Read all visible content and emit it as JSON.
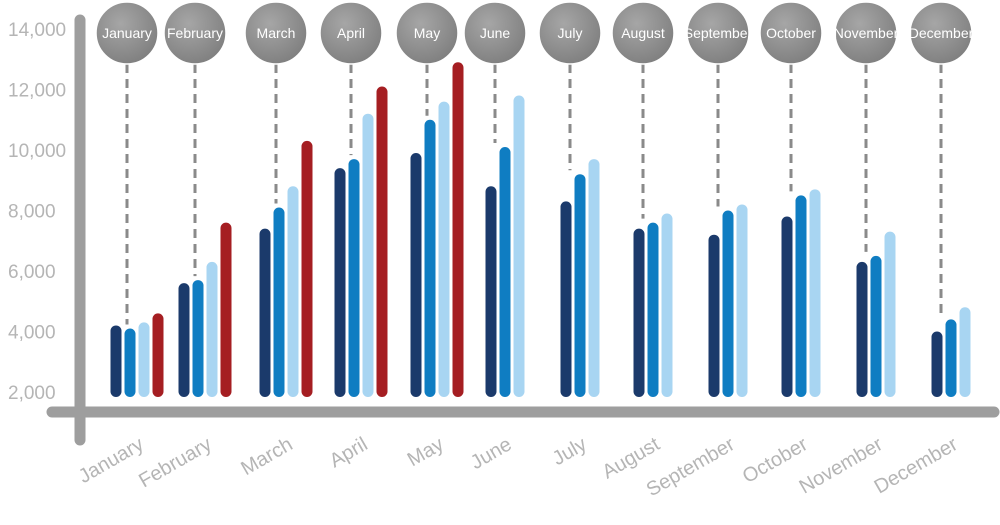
{
  "chart_data": {
    "type": "bar",
    "title": "",
    "xlabel": "",
    "ylabel": "",
    "categories": [
      "January",
      "February",
      "March",
      "April",
      "May",
      "June",
      "July",
      "August",
      "September",
      "October",
      "November",
      "December"
    ],
    "bubble_labels": [
      "January",
      "February",
      "March",
      "April",
      "May",
      "June",
      "July",
      "August",
      "September",
      "October",
      "November",
      "December"
    ],
    "yticks": [
      "2,000",
      "4,000",
      "6,000",
      "8,000",
      "10,000",
      "12,000",
      "14,000"
    ],
    "ytick_values": [
      2000,
      4000,
      6000,
      8000,
      10000,
      12000,
      14000
    ],
    "ylim": [
      0,
      14000
    ],
    "grid": false,
    "series": [
      {
        "color": "#1b3a6b",
        "values": [
          4200,
          5600,
          7400,
          9400,
          9900,
          8800,
          8300,
          7400,
          7200,
          7800,
          6300,
          4000
        ]
      },
      {
        "color": "#0f7dc2",
        "values": [
          4100,
          5700,
          8100,
          9700,
          11000,
          10100,
          9200,
          7600,
          8000,
          8500,
          6500,
          4400
        ]
      },
      {
        "color": "#a8d5f2",
        "values": [
          4300,
          6300,
          8800,
          11200,
          11600,
          11800,
          9700,
          7900,
          8200,
          8700,
          7300,
          4800
        ]
      },
      {
        "color": "#a51e22",
        "values": [
          4600,
          7600,
          10300,
          12100,
          12900,
          null,
          null,
          null,
          null,
          null,
          null,
          null
        ]
      }
    ],
    "bubble_color": "#8a8a8a",
    "axis_color": "#9e9e9e",
    "label_color": "#b5b5b5"
  }
}
